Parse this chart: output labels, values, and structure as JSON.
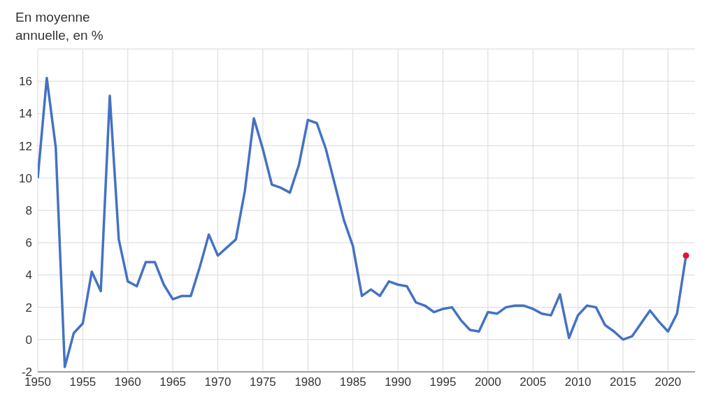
{
  "chart_data": {
    "type": "line",
    "ylabel": "En moyenne annuelle, en %",
    "x": [
      1950,
      1951,
      1952,
      1953,
      1954,
      1955,
      1956,
      1957,
      1958,
      1959,
      1960,
      1961,
      1962,
      1963,
      1964,
      1965,
      1966,
      1967,
      1968,
      1969,
      1970,
      1971,
      1972,
      1973,
      1974,
      1975,
      1976,
      1977,
      1978,
      1979,
      1980,
      1981,
      1982,
      1983,
      1984,
      1985,
      1986,
      1987,
      1988,
      1989,
      1990,
      1991,
      1992,
      1993,
      1994,
      1995,
      1996,
      1997,
      1998,
      1999,
      2000,
      2001,
      2002,
      2003,
      2004,
      2005,
      2006,
      2007,
      2008,
      2009,
      2010,
      2011,
      2012,
      2013,
      2014,
      2015,
      2016,
      2017,
      2018,
      2019,
      2020,
      2021,
      2022
    ],
    "series": [
      {
        "color": "#4472c4",
        "marker": "none",
        "values": [
          10,
          16.2,
          11.9,
          -1.7,
          0.4,
          1.0,
          4.2,
          3.0,
          15.1,
          6.2,
          3.6,
          3.3,
          4.8,
          4.8,
          3.4,
          2.5,
          2.7,
          2.7,
          4.5,
          6.5,
          5.2,
          5.7,
          6.2,
          9.2,
          13.7,
          11.8,
          9.6,
          9.4,
          9.1,
          10.8,
          13.6,
          13.4,
          11.8,
          9.6,
          7.4,
          5.8,
          2.7,
          3.1,
          2.7,
          3.6,
          3.4,
          3.3,
          2.3,
          2.1,
          1.7,
          1.9,
          2.0,
          1.2,
          0.6,
          0.5,
          1.7,
          1.6,
          2.0,
          2.1,
          2.1,
          1.9,
          1.6,
          1.5,
          2.8,
          0.1,
          1.5,
          2.1,
          2.0,
          0.9,
          0.5,
          0.0,
          0.2,
          1.0,
          1.8,
          1.1,
          0.5,
          1.6,
          5.2
        ]
      },
      {
        "type": "scatter",
        "color": "#e8103c",
        "marker": "circle",
        "x": [
          2022
        ],
        "values": [
          5.2
        ]
      }
    ],
    "xlim": [
      1950,
      2023
    ],
    "xticks": [
      1950,
      1955,
      1960,
      1965,
      1970,
      1975,
      1980,
      1985,
      1990,
      1995,
      2000,
      2005,
      2010,
      2015,
      2020
    ],
    "ylim": [
      -2,
      18
    ],
    "yticks": [
      -2,
      0,
      2,
      4,
      6,
      8,
      10,
      12,
      14,
      16,
      {
        "value": 18,
        "label": null
      }
    ],
    "grid": true,
    "legend": false
  }
}
